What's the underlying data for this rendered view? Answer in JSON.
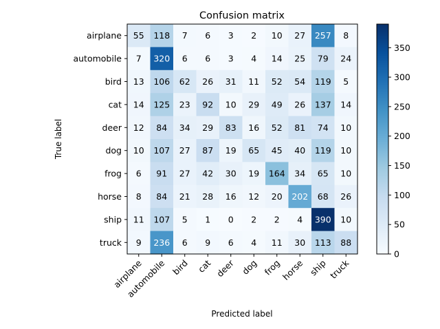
{
  "chart_data": {
    "type": "heatmap",
    "title": "Confusion matrix",
    "xlabel": "Predicted label",
    "ylabel": "True label",
    "x_categories": [
      "airplane",
      "automobile",
      "bird",
      "cat",
      "deer",
      "dog",
      "frog",
      "horse",
      "ship",
      "truck"
    ],
    "y_categories": [
      "airplane",
      "automobile",
      "bird",
      "cat",
      "deer",
      "dog",
      "frog",
      "horse",
      "ship",
      "truck"
    ],
    "values": [
      [
        55,
        118,
        7,
        6,
        3,
        2,
        10,
        27,
        257,
        8
      ],
      [
        7,
        320,
        6,
        6,
        3,
        4,
        14,
        25,
        79,
        24
      ],
      [
        13,
        106,
        62,
        26,
        31,
        11,
        52,
        54,
        119,
        5
      ],
      [
        14,
        125,
        23,
        92,
        10,
        29,
        49,
        26,
        137,
        14
      ],
      [
        12,
        84,
        34,
        29,
        83,
        16,
        52,
        81,
        74,
        10
      ],
      [
        10,
        107,
        27,
        87,
        19,
        65,
        45,
        40,
        119,
        10
      ],
      [
        6,
        91,
        27,
        42,
        30,
        19,
        164,
        34,
        65,
        10
      ],
      [
        8,
        84,
        21,
        28,
        16,
        12,
        20,
        202,
        68,
        26
      ],
      [
        11,
        107,
        5,
        1,
        0,
        2,
        2,
        4,
        390,
        10
      ],
      [
        9,
        236,
        6,
        9,
        6,
        4,
        11,
        30,
        113,
        88
      ]
    ],
    "colormap": "Blues",
    "colormap_colors": [
      "#f7fbff",
      "#deebf7",
      "#c6dbef",
      "#9ecae1",
      "#6baed6",
      "#4292c6",
      "#2171b5",
      "#08519c",
      "#08306b"
    ],
    "colorbar": {
      "range": [
        0,
        390
      ],
      "ticks": [
        0,
        50,
        100,
        150,
        200,
        250,
        300,
        350
      ]
    },
    "x_tick_rotation": "45deg",
    "grid": false,
    "legend": "colorbar-right"
  }
}
